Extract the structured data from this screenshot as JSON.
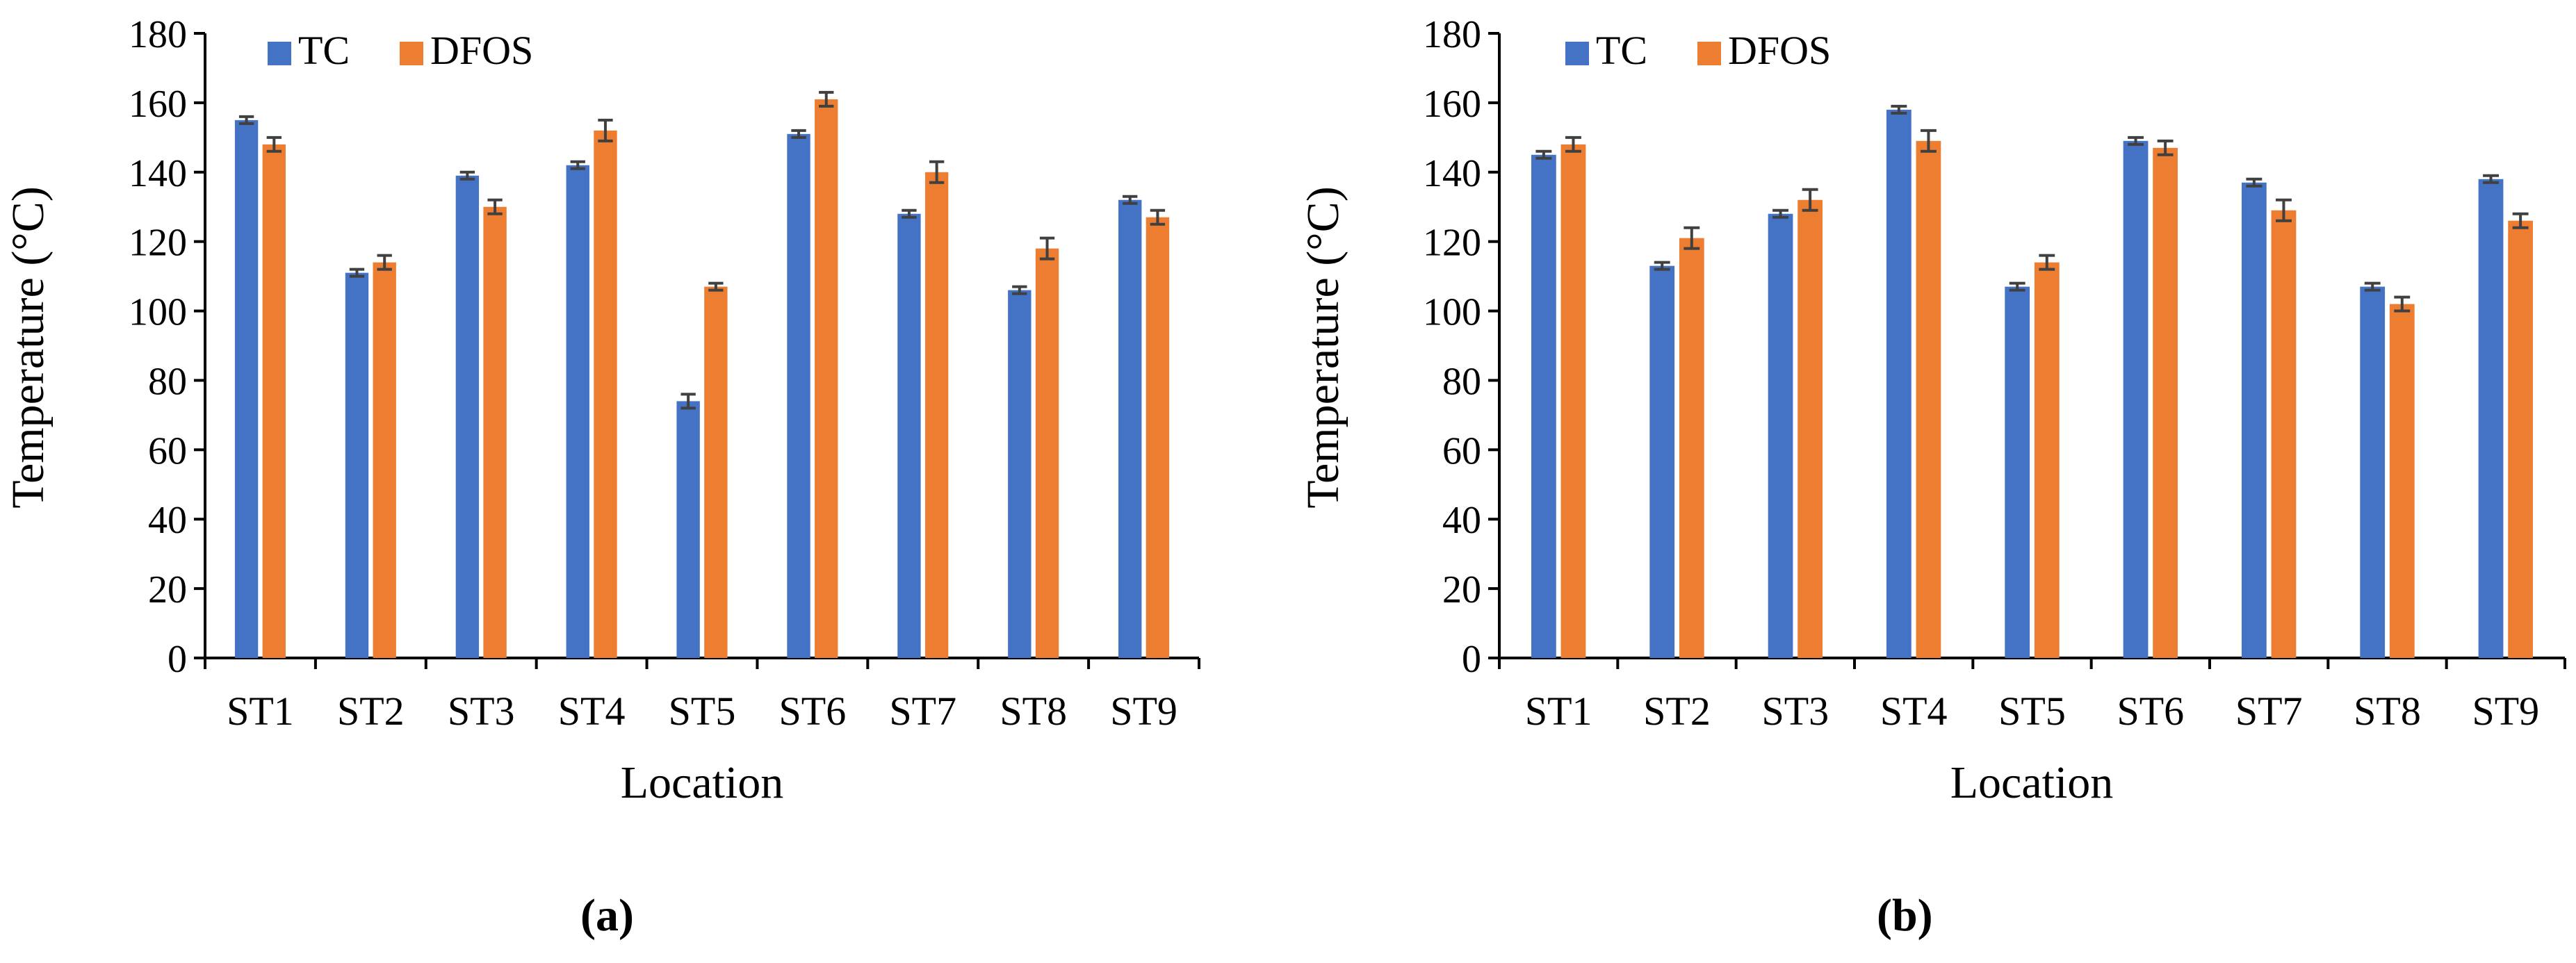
{
  "chart_data": [
    {
      "panel": "a",
      "type": "bar",
      "title": "",
      "xlabel": "Location",
      "ylabel": "Temperature (°C)",
      "ylim": [
        0,
        180
      ],
      "yticks": [
        0,
        20,
        40,
        60,
        80,
        100,
        120,
        140,
        160,
        180
      ],
      "grid": false,
      "legend": "top-left",
      "categories": [
        "ST1",
        "ST2",
        "ST3",
        "ST4",
        "ST5",
        "ST6",
        "ST7",
        "ST8",
        "ST9"
      ],
      "series": [
        {
          "name": "TC",
          "color": "#4472C4",
          "values": [
            155,
            111,
            139,
            142,
            74,
            151,
            128,
            106,
            132
          ],
          "errors": [
            1,
            1,
            1,
            1,
            2,
            1,
            1,
            1,
            1
          ]
        },
        {
          "name": "DFOS",
          "color": "#ED7D31",
          "values": [
            148,
            114,
            130,
            152,
            107,
            161,
            140,
            118,
            127
          ],
          "errors": [
            2,
            2,
            2,
            3,
            1,
            2,
            3,
            3,
            2
          ]
        }
      ]
    },
    {
      "panel": "b",
      "type": "bar",
      "title": "",
      "xlabel": "Location",
      "ylabel": "Temperature (°C)",
      "ylim": [
        0,
        180
      ],
      "yticks": [
        0,
        20,
        40,
        60,
        80,
        100,
        120,
        140,
        160,
        180
      ],
      "grid": false,
      "legend": "top-left",
      "categories": [
        "ST1",
        "ST2",
        "ST3",
        "ST4",
        "ST5",
        "ST6",
        "ST7",
        "ST8",
        "ST9"
      ],
      "series": [
        {
          "name": "TC",
          "color": "#4472C4",
          "values": [
            145,
            113,
            128,
            158,
            107,
            149,
            137,
            107,
            138
          ],
          "errors": [
            1,
            1,
            1,
            1,
            1,
            1,
            1,
            1,
            1
          ]
        },
        {
          "name": "DFOS",
          "color": "#ED7D31",
          "values": [
            148,
            121,
            132,
            149,
            114,
            147,
            129,
            102,
            126
          ],
          "errors": [
            2,
            3,
            3,
            3,
            2,
            2,
            3,
            2,
            2
          ]
        }
      ]
    }
  ],
  "panel_labels": {
    "a": "(a)",
    "b": "(b)"
  },
  "colors": {
    "axis": "#000000",
    "error_bar": "#404040"
  }
}
